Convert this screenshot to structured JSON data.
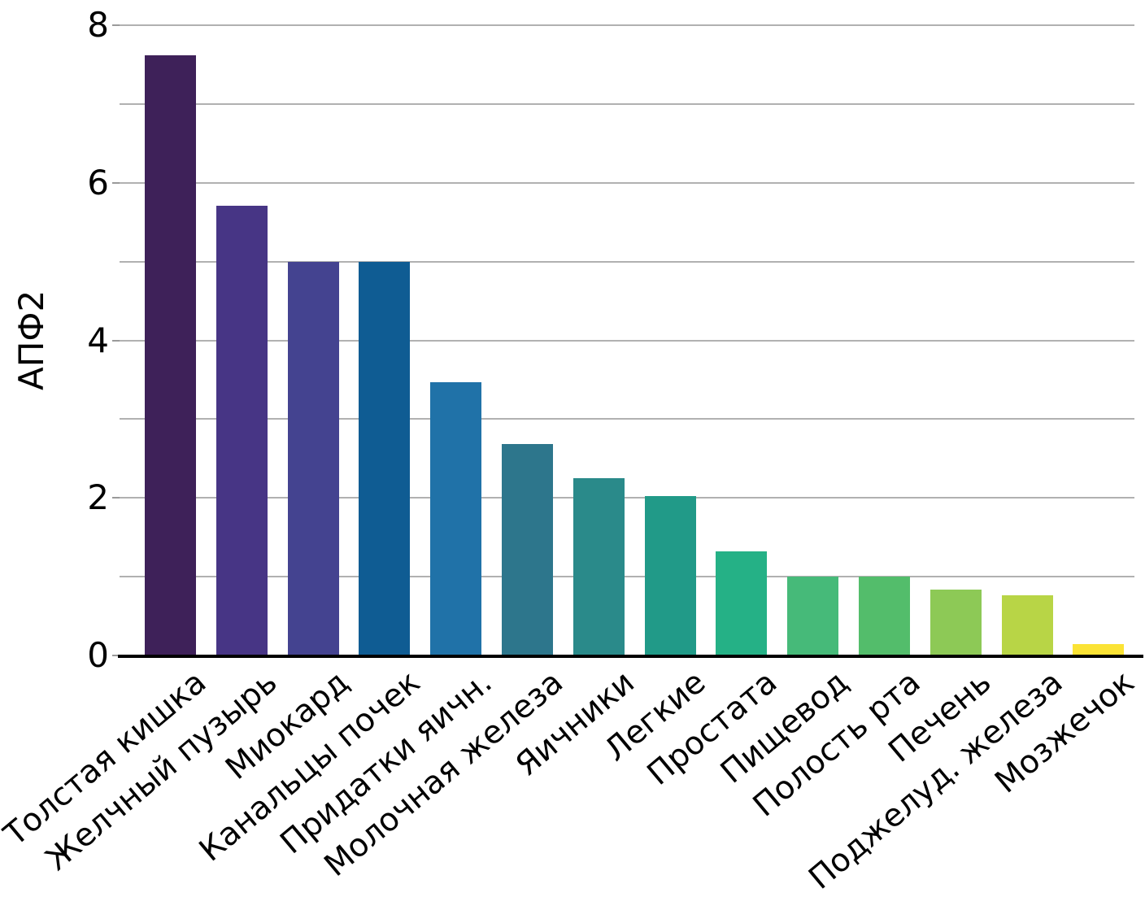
{
  "chart_data": {
    "type": "bar",
    "title": "",
    "xlabel": "",
    "ylabel": "АПФ2",
    "ylim": [
      0,
      8
    ],
    "ytick_labels": [
      0,
      2,
      4,
      6,
      8
    ],
    "gridlines_at": [
      1,
      2,
      3,
      4,
      5,
      6,
      7,
      8
    ],
    "grid": true,
    "legend": false,
    "background": "#ffffff",
    "grid_color": "#b1b1b1",
    "axis_color": "#000000",
    "categories": [
      "Толстая кишка",
      "Желчный пузырь",
      "Миокард",
      "Канальцы почек",
      "Придатки яичн.",
      "Молочная железа",
      "Яичники",
      "Легкие",
      "Простата",
      "Пищевод",
      "Полость рта",
      "Печень",
      "Поджелуд. железа",
      "Мозжечок"
    ],
    "values": [
      7.62,
      5.71,
      5.0,
      5.0,
      3.47,
      2.68,
      2.25,
      2.02,
      1.32,
      1.0,
      1.0,
      0.84,
      0.76,
      0.14
    ],
    "bar_colors": [
      "#3e2159",
      "#473585",
      "#444390",
      "#0f5c93",
      "#2072a8",
      "#2d768c",
      "#2a8a8a",
      "#219a88",
      "#25b186",
      "#46ba79",
      "#53bd6b",
      "#8dc956",
      "#b8d546",
      "#fbe335"
    ]
  }
}
